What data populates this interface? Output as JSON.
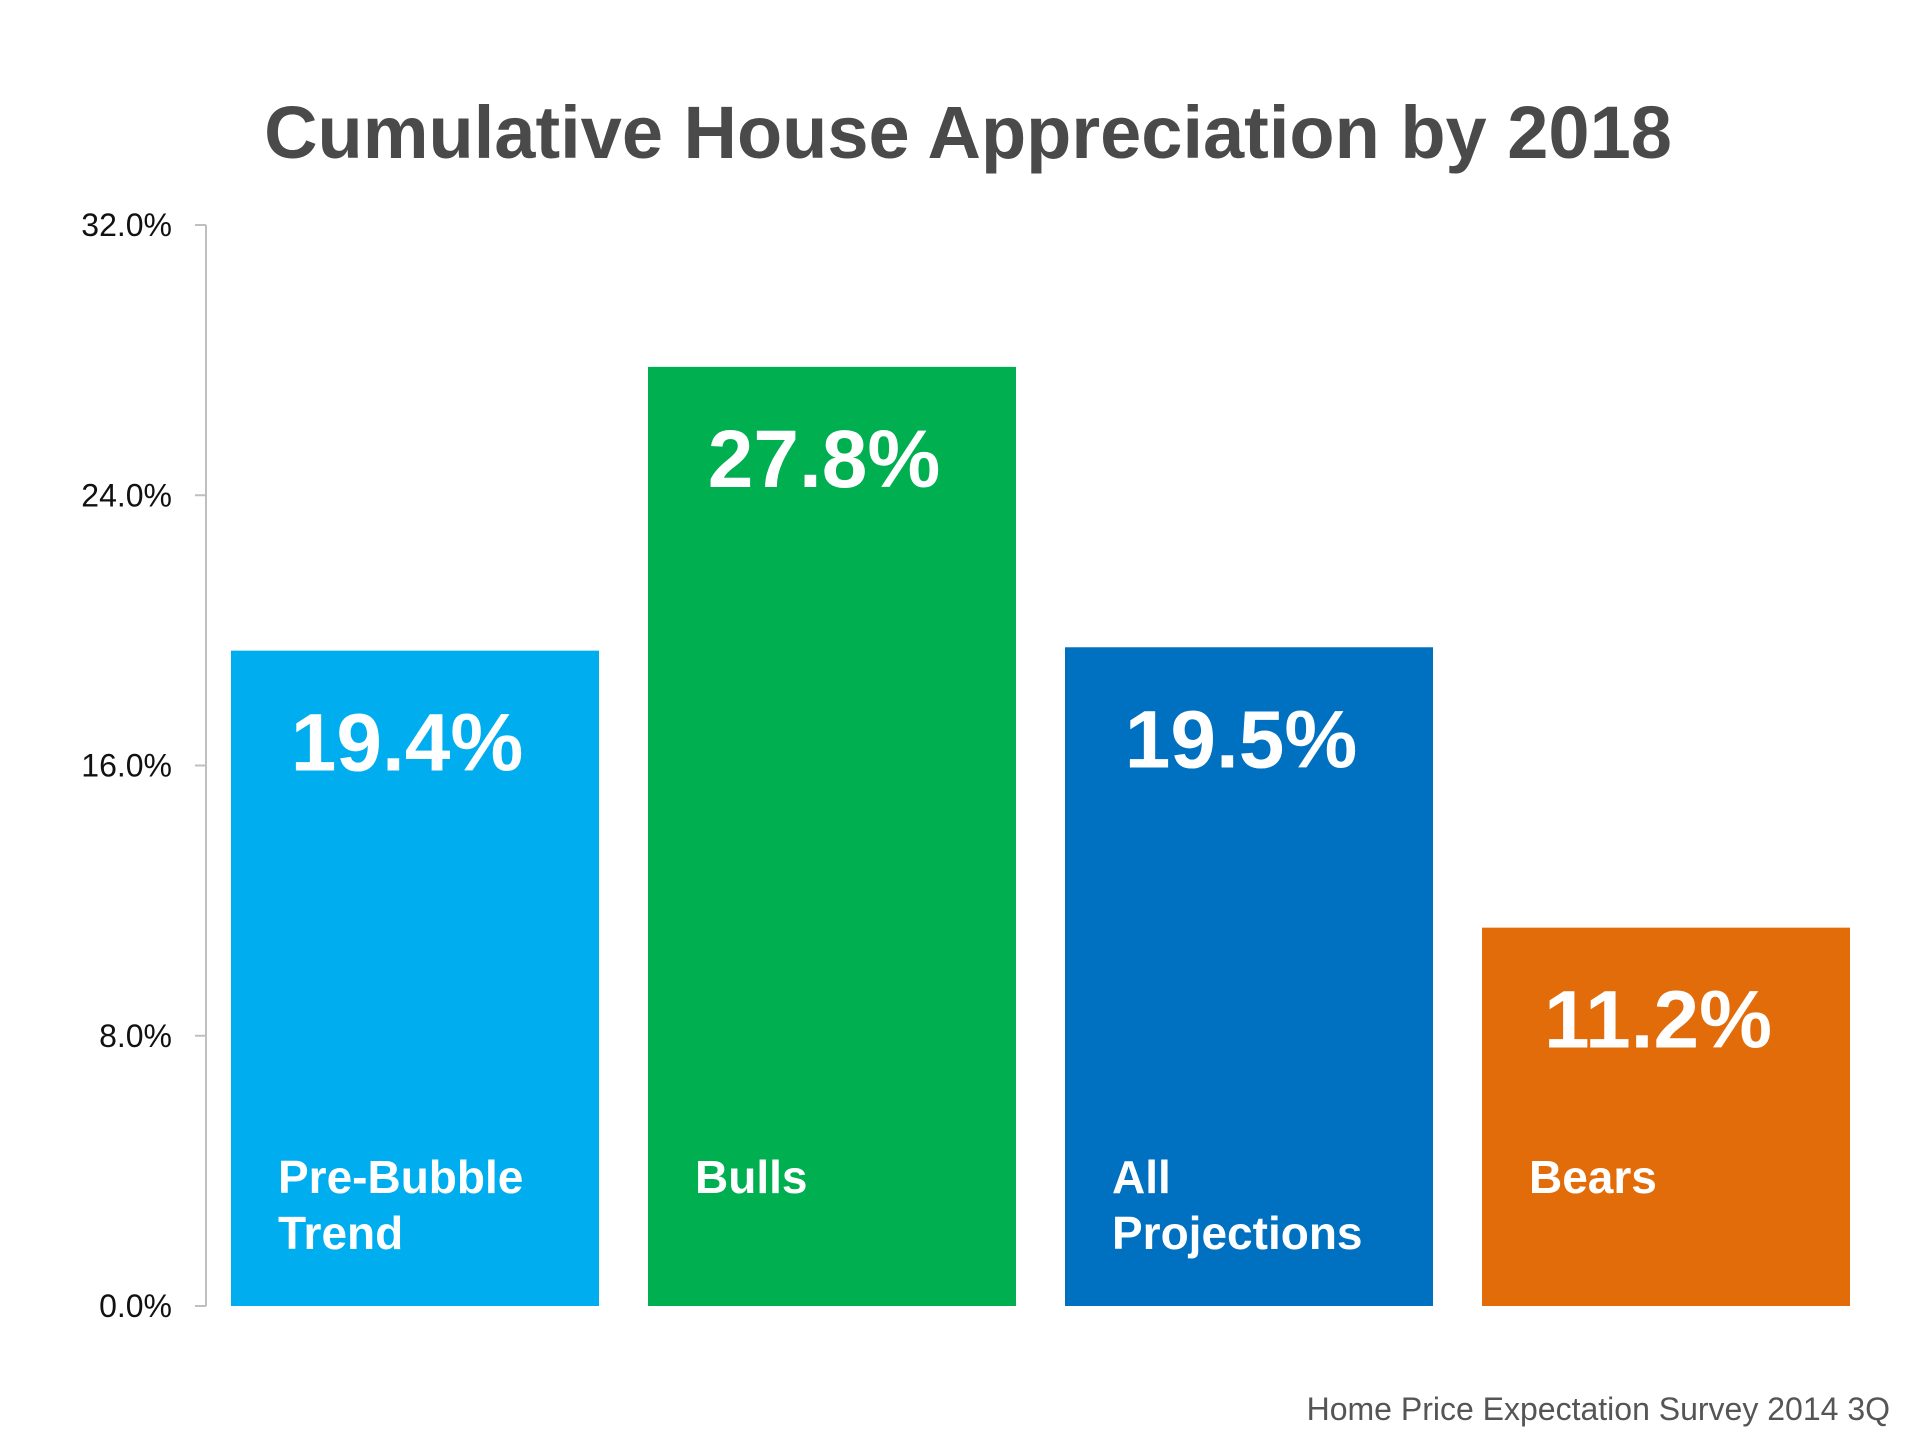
{
  "chart_data": {
    "type": "bar",
    "title": "Cumulative House Appreciation by 2018",
    "xlabel": "",
    "ylabel": "",
    "ylim": [
      0,
      32
    ],
    "yticks": [
      "0.0%",
      "8.0%",
      "16.0%",
      "24.0%",
      "32.0%"
    ],
    "grid": false,
    "categories": [
      [
        "Pre-Bubble",
        "Trend"
      ],
      [
        "Bulls"
      ],
      [
        "All",
        "Projections"
      ],
      [
        "Bears"
      ]
    ],
    "values": [
      19.4,
      27.8,
      19.5,
      11.2
    ],
    "data_labels": [
      "19.4%",
      "27.8%",
      "19.5%",
      "11.2%"
    ],
    "colors": [
      "#00aeef",
      "#00b050",
      "#0070c0",
      "#e36c0a"
    ],
    "source": "Home Price Expectation Survey 2014 3Q"
  }
}
